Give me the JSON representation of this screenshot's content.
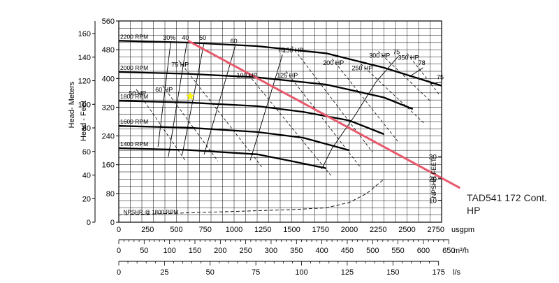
{
  "chart_data": {
    "type": "line",
    "title": "",
    "xlabel": "usgpm",
    "ylabel_feet": "Head - Feet",
    "ylabel_meters": "Head- Meters",
    "npshr_label": "NPSHR FEET",
    "x_unit_m3h": "m³/h",
    "x_unit_ls": "l/s",
    "xlim": [
      0,
      2800
    ],
    "ylim_feet": [
      0,
      560
    ],
    "xticks_gpm": [
      "0",
      "250",
      "500",
      "750",
      "1000",
      "1250",
      "1500",
      "1750",
      "2000",
      "2250",
      "2500",
      "2750"
    ],
    "yticks_feet": [
      "0",
      "80",
      "160",
      "240",
      "320",
      "400",
      "480",
      "560"
    ],
    "yticks_meters": [
      "0",
      "20",
      "40",
      "60",
      "80",
      "100",
      "120",
      "140",
      "160"
    ],
    "xticks_m3h": [
      "0",
      "50",
      "100",
      "150",
      "200",
      "250",
      "300",
      "350",
      "400",
      "450",
      "500",
      "550",
      "600",
      "650"
    ],
    "xticks_ls": [
      "0",
      "25",
      "50",
      "75",
      "100",
      "125",
      "150",
      "175"
    ],
    "npshr_ticks": [
      "10",
      "20",
      "30"
    ],
    "speed_curves": [
      {
        "label": "2200 RPM",
        "points": [
          [
            0,
            505
          ],
          [
            600,
            500
          ],
          [
            1200,
            490
          ],
          [
            1800,
            470
          ],
          [
            2300,
            430
          ],
          [
            2800,
            380
          ]
        ]
      },
      {
        "label": "2000 RPM",
        "points": [
          [
            0,
            418
          ],
          [
            600,
            413
          ],
          [
            1200,
            403
          ],
          [
            1800,
            383
          ],
          [
            2300,
            347
          ],
          [
            2550,
            315
          ]
        ]
      },
      {
        "label": "1800 RPM",
        "points": [
          [
            0,
            338
          ],
          [
            600,
            333
          ],
          [
            1200,
            323
          ],
          [
            1600,
            307
          ],
          [
            2000,
            283
          ],
          [
            2300,
            245
          ]
        ]
      },
      {
        "label": "1600 RPM",
        "points": [
          [
            0,
            268
          ],
          [
            600,
            263
          ],
          [
            1200,
            251
          ],
          [
            1600,
            235
          ],
          [
            2000,
            200
          ]
        ]
      },
      {
        "label": "1400 RPM",
        "points": [
          [
            0,
            206
          ],
          [
            600,
            201
          ],
          [
            1200,
            189
          ],
          [
            1500,
            170
          ],
          [
            1800,
            150
          ]
        ]
      }
    ],
    "efficiency_lines": [
      {
        "label": "30%",
        "points": [
          [
            340,
            210
          ],
          [
            450,
            500
          ]
        ]
      },
      {
        "label": "40",
        "points": [
          [
            430,
            182
          ],
          [
            590,
            500
          ]
        ]
      },
      {
        "label": "50",
        "points": [
          [
            550,
            188
          ],
          [
            740,
            500
          ]
        ]
      },
      {
        "label": "60",
        "points": [
          [
            740,
            188
          ],
          [
            1010,
            490
          ]
        ]
      },
      {
        "label": "70",
        "points": [
          [
            1140,
            172
          ],
          [
            1420,
            466
          ]
        ]
      },
      {
        "label": "75",
        "points": [
          [
            1760,
            148
          ],
          [
            1850,
            206
          ],
          [
            2050,
            298
          ],
          [
            2230,
            390
          ],
          [
            2420,
            460
          ]
        ]
      },
      {
        "label": "78",
        "points": [
          [
            2520,
            405
          ],
          [
            2640,
            430
          ]
        ]
      },
      {
        "label": "75",
        "points": [
          [
            2700,
            385
          ],
          [
            2800,
            390
          ]
        ]
      }
    ],
    "power_lines": [
      {
        "label": "50 HP",
        "points": [
          [
            150,
            370
          ],
          [
            580,
            170
          ]
        ]
      },
      {
        "label": "60 HP",
        "points": [
          [
            380,
            380
          ],
          [
            860,
            170
          ]
        ]
      },
      {
        "label": "75 HP",
        "points": [
          [
            520,
            450
          ],
          [
            1250,
            150
          ]
        ]
      },
      {
        "label": "100 HP",
        "points": [
          [
            1100,
            420
          ],
          [
            1840,
            130
          ]
        ]
      },
      {
        "label": "125 HP",
        "points": [
          [
            1450,
            420
          ],
          [
            2090,
            155
          ]
        ]
      },
      {
        "label": "150 HP",
        "points": [
          [
            1500,
            490
          ],
          [
            2200,
            195
          ]
        ]
      },
      {
        "label": "200 HP",
        "points": [
          [
            1850,
            455
          ],
          [
            2420,
            225
          ]
        ]
      },
      {
        "label": "250 HP",
        "points": [
          [
            2100,
            440
          ],
          [
            2650,
            275
          ]
        ]
      },
      {
        "label": "300 HP",
        "points": [
          [
            2250,
            475
          ],
          [
            2710,
            335
          ]
        ]
      },
      {
        "label": "350 HP",
        "points": [
          [
            2500,
            470
          ],
          [
            2780,
            355
          ]
        ]
      }
    ],
    "npshr_curve": {
      "label": "NPSHR @ 1800 RPM",
      "points": [
        [
          0,
          20
        ],
        [
          500,
          25
        ],
        [
          1000,
          30
        ],
        [
          1500,
          35
        ],
        [
          1800,
          40
        ],
        [
          2000,
          55
        ],
        [
          2150,
          80
        ],
        [
          2300,
          120
        ]
      ]
    },
    "operating_line": {
      "label": "TAD541 172 Cont. HP",
      "color": "#e8596b",
      "points": [
        [
          600,
          505
        ],
        [
          2960,
          95
        ]
      ]
    },
    "operating_point": {
      "x": 620,
      "y": 350,
      "color": "#ffff00"
    }
  }
}
